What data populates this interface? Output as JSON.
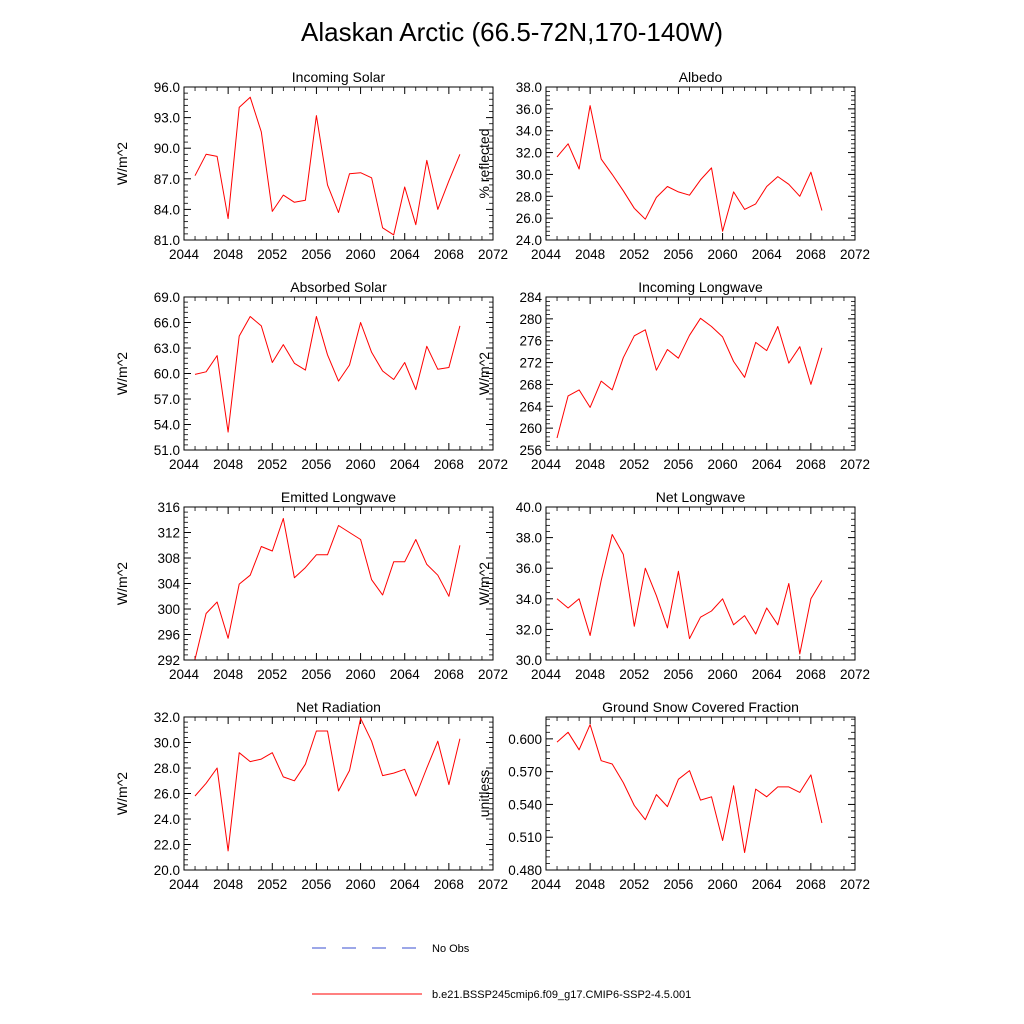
{
  "title": "Alaskan Arctic (66.5-72N,170-140W)",
  "legend": {
    "obs_label": "No Obs",
    "obs_color": "#3a4fd0",
    "model_label": "b.e21.BSSP245cmip6.f09_g17.CMIP6-SSP2-4.5.001",
    "model_color": "#ff0000"
  },
  "chart_data": [
    {
      "type": "line",
      "title": "Incoming Solar",
      "ylabel": "W/m^2",
      "xlim": [
        2044,
        2072
      ],
      "ylim": [
        81,
        96
      ],
      "xticks": [
        "2044",
        "2048",
        "2052",
        "2056",
        "2060",
        "2064",
        "2068",
        "2072"
      ],
      "yticks": [
        "81.0",
        "84.0",
        "87.0",
        "90.0",
        "93.0",
        "96.0"
      ],
      "x": [
        2045,
        2046,
        2047,
        2048,
        2049,
        2050,
        2051,
        2052,
        2053,
        2054,
        2055,
        2056,
        2057,
        2058,
        2059,
        2060,
        2061,
        2062,
        2063,
        2064,
        2065,
        2066,
        2067,
        2068,
        2069
      ],
      "series": [
        {
          "values": [
            87.3,
            89.4,
            89.2,
            83.1,
            94.0,
            95.0,
            91.6,
            83.8,
            85.4,
            84.7,
            84.9,
            93.2,
            86.4,
            83.7,
            87.5,
            87.6,
            87.1,
            82.2,
            81.5,
            86.2,
            82.5,
            88.8,
            84.0,
            86.8,
            89.4
          ]
        }
      ]
    },
    {
      "type": "line",
      "title": "Albedo",
      "ylabel": "% reflected",
      "xlim": [
        2044,
        2072
      ],
      "ylim": [
        24,
        38
      ],
      "xticks": [
        "2044",
        "2048",
        "2052",
        "2056",
        "2060",
        "2064",
        "2068",
        "2072"
      ],
      "yticks": [
        "24.0",
        "26.0",
        "28.0",
        "30.0",
        "32.0",
        "34.0",
        "36.0",
        "38.0"
      ],
      "x": [
        2045,
        2046,
        2047,
        2048,
        2049,
        2050,
        2051,
        2052,
        2053,
        2054,
        2055,
        2056,
        2057,
        2058,
        2059,
        2060,
        2061,
        2062,
        2063,
        2064,
        2065,
        2066,
        2067,
        2068,
        2069
      ],
      "series": [
        {
          "values": [
            31.6,
            32.8,
            30.5,
            36.3,
            31.4,
            30.0,
            28.5,
            26.9,
            25.9,
            27.9,
            28.9,
            28.4,
            28.1,
            29.5,
            30.6,
            24.8,
            28.4,
            26.8,
            27.3,
            28.9,
            29.8,
            29.1,
            28.0,
            30.2,
            26.7
          ]
        }
      ]
    },
    {
      "type": "line",
      "title": "Absorbed Solar",
      "ylabel": "W/m^2",
      "xlim": [
        2044,
        2072
      ],
      "ylim": [
        51,
        69
      ],
      "xticks": [
        "2044",
        "2048",
        "2052",
        "2056",
        "2060",
        "2064",
        "2068",
        "2072"
      ],
      "yticks": [
        "51.0",
        "54.0",
        "57.0",
        "60.0",
        "63.0",
        "66.0",
        "69.0"
      ],
      "x": [
        2045,
        2046,
        2047,
        2048,
        2049,
        2050,
        2051,
        2052,
        2053,
        2054,
        2055,
        2056,
        2057,
        2058,
        2059,
        2060,
        2061,
        2062,
        2063,
        2064,
        2065,
        2066,
        2067,
        2068,
        2069
      ],
      "series": [
        {
          "values": [
            59.9,
            60.2,
            62.1,
            53.1,
            64.4,
            66.7,
            65.6,
            61.3,
            63.4,
            61.2,
            60.4,
            66.7,
            62.2,
            59.1,
            61.0,
            66.0,
            62.5,
            60.3,
            59.3,
            61.3,
            58.1,
            63.2,
            60.5,
            60.7,
            65.6
          ]
        }
      ]
    },
    {
      "type": "line",
      "title": "Incoming Longwave",
      "ylabel": "W/m^2",
      "xlim": [
        2044,
        2072
      ],
      "ylim": [
        256,
        284
      ],
      "xticks": [
        "2044",
        "2048",
        "2052",
        "2056",
        "2060",
        "2064",
        "2068",
        "2072"
      ],
      "yticks": [
        "256",
        "260",
        "264",
        "268",
        "272",
        "276",
        "280",
        "284"
      ],
      "x": [
        2045,
        2046,
        2047,
        2048,
        2049,
        2050,
        2051,
        2052,
        2053,
        2054,
        2055,
        2056,
        2057,
        2058,
        2059,
        2060,
        2061,
        2062,
        2063,
        2064,
        2065,
        2066,
        2067,
        2068,
        2069
      ],
      "series": [
        {
          "values": [
            258.2,
            265.9,
            267.0,
            263.8,
            268.6,
            267.0,
            272.9,
            276.9,
            278.0,
            270.6,
            274.4,
            272.8,
            277.0,
            280.1,
            278.6,
            276.7,
            272.2,
            269.3,
            275.7,
            274.2,
            278.6,
            271.9,
            274.9,
            268.0,
            274.7
          ]
        }
      ]
    },
    {
      "type": "line",
      "title": "Emitted Longwave",
      "ylabel": "W/m^2",
      "xlim": [
        2044,
        2072
      ],
      "ylim": [
        292,
        316
      ],
      "xticks": [
        "2044",
        "2048",
        "2052",
        "2056",
        "2060",
        "2064",
        "2068",
        "2072"
      ],
      "yticks": [
        "292",
        "296",
        "300",
        "304",
        "308",
        "312",
        "316"
      ],
      "x": [
        2045,
        2046,
        2047,
        2048,
        2049,
        2050,
        2051,
        2052,
        2053,
        2054,
        2055,
        2056,
        2057,
        2058,
        2059,
        2060,
        2061,
        2062,
        2063,
        2064,
        2065,
        2066,
        2067,
        2068,
        2069
      ],
      "series": [
        {
          "values": [
            292.1,
            299.3,
            301.1,
            295.4,
            303.9,
            305.3,
            309.8,
            309.1,
            314.2,
            304.9,
            306.5,
            308.5,
            308.5,
            313.1,
            312.0,
            310.9,
            304.6,
            302.2,
            307.4,
            307.4,
            310.9,
            307.0,
            305.3,
            302.0,
            310.0
          ]
        }
      ]
    },
    {
      "type": "line",
      "title": "Net Longwave",
      "ylabel": "W/m^2",
      "xlim": [
        2044,
        2072
      ],
      "ylim": [
        30,
        40
      ],
      "xticks": [
        "2044",
        "2048",
        "2052",
        "2056",
        "2060",
        "2064",
        "2068",
        "2072"
      ],
      "yticks": [
        "30.0",
        "32.0",
        "34.0",
        "36.0",
        "38.0",
        "40.0"
      ],
      "x": [
        2045,
        2046,
        2047,
        2048,
        2049,
        2050,
        2051,
        2052,
        2053,
        2054,
        2055,
        2056,
        2057,
        2058,
        2059,
        2060,
        2061,
        2062,
        2063,
        2064,
        2065,
        2066,
        2067,
        2068,
        2069
      ],
      "series": [
        {
          "values": [
            34.0,
            33.4,
            34.0,
            31.6,
            35.2,
            38.2,
            36.9,
            32.2,
            36.0,
            34.2,
            32.1,
            35.8,
            31.4,
            32.8,
            33.2,
            34.0,
            32.3,
            32.9,
            31.7,
            33.4,
            32.3,
            35.0,
            30.4,
            34.0,
            35.2
          ]
        }
      ]
    },
    {
      "type": "line",
      "title": "Net Radiation",
      "ylabel": "W/m^2",
      "xlim": [
        2044,
        2072
      ],
      "ylim": [
        20,
        32
      ],
      "xticks": [
        "2044",
        "2048",
        "2052",
        "2056",
        "2060",
        "2064",
        "2068",
        "2072"
      ],
      "yticks": [
        "20.0",
        "22.0",
        "24.0",
        "26.0",
        "28.0",
        "30.0",
        "32.0"
      ],
      "x": [
        2045,
        2046,
        2047,
        2048,
        2049,
        2050,
        2051,
        2052,
        2053,
        2054,
        2055,
        2056,
        2057,
        2058,
        2059,
        2060,
        2061,
        2062,
        2063,
        2064,
        2065,
        2066,
        2067,
        2068,
        2069
      ],
      "series": [
        {
          "values": [
            25.8,
            26.8,
            28.0,
            21.5,
            29.2,
            28.5,
            28.7,
            29.2,
            27.3,
            27.0,
            28.3,
            30.9,
            30.9,
            26.2,
            27.8,
            31.9,
            30.1,
            27.4,
            27.6,
            27.9,
            25.8,
            28.0,
            30.1,
            26.7,
            30.3
          ]
        }
      ]
    },
    {
      "type": "line",
      "title": "Ground Snow Covered Fraction",
      "ylabel": "unitless",
      "xlim": [
        2044,
        2072
      ],
      "ylim": [
        0.48,
        0.62
      ],
      "xticks": [
        "2044",
        "2048",
        "2052",
        "2056",
        "2060",
        "2064",
        "2068",
        "2072"
      ],
      "yticks": [
        "0.480",
        "0.510",
        "0.540",
        "0.570",
        "0.600"
      ],
      "x": [
        2045,
        2046,
        2047,
        2048,
        2049,
        2050,
        2051,
        2052,
        2053,
        2054,
        2055,
        2056,
        2057,
        2058,
        2059,
        2060,
        2061,
        2062,
        2063,
        2064,
        2065,
        2066,
        2067,
        2068,
        2069
      ],
      "series": [
        {
          "values": [
            0.597,
            0.606,
            0.59,
            0.613,
            0.58,
            0.577,
            0.56,
            0.539,
            0.526,
            0.549,
            0.538,
            0.563,
            0.571,
            0.544,
            0.547,
            0.507,
            0.557,
            0.496,
            0.554,
            0.547,
            0.556,
            0.556,
            0.551,
            0.567,
            0.523
          ]
        }
      ]
    }
  ]
}
